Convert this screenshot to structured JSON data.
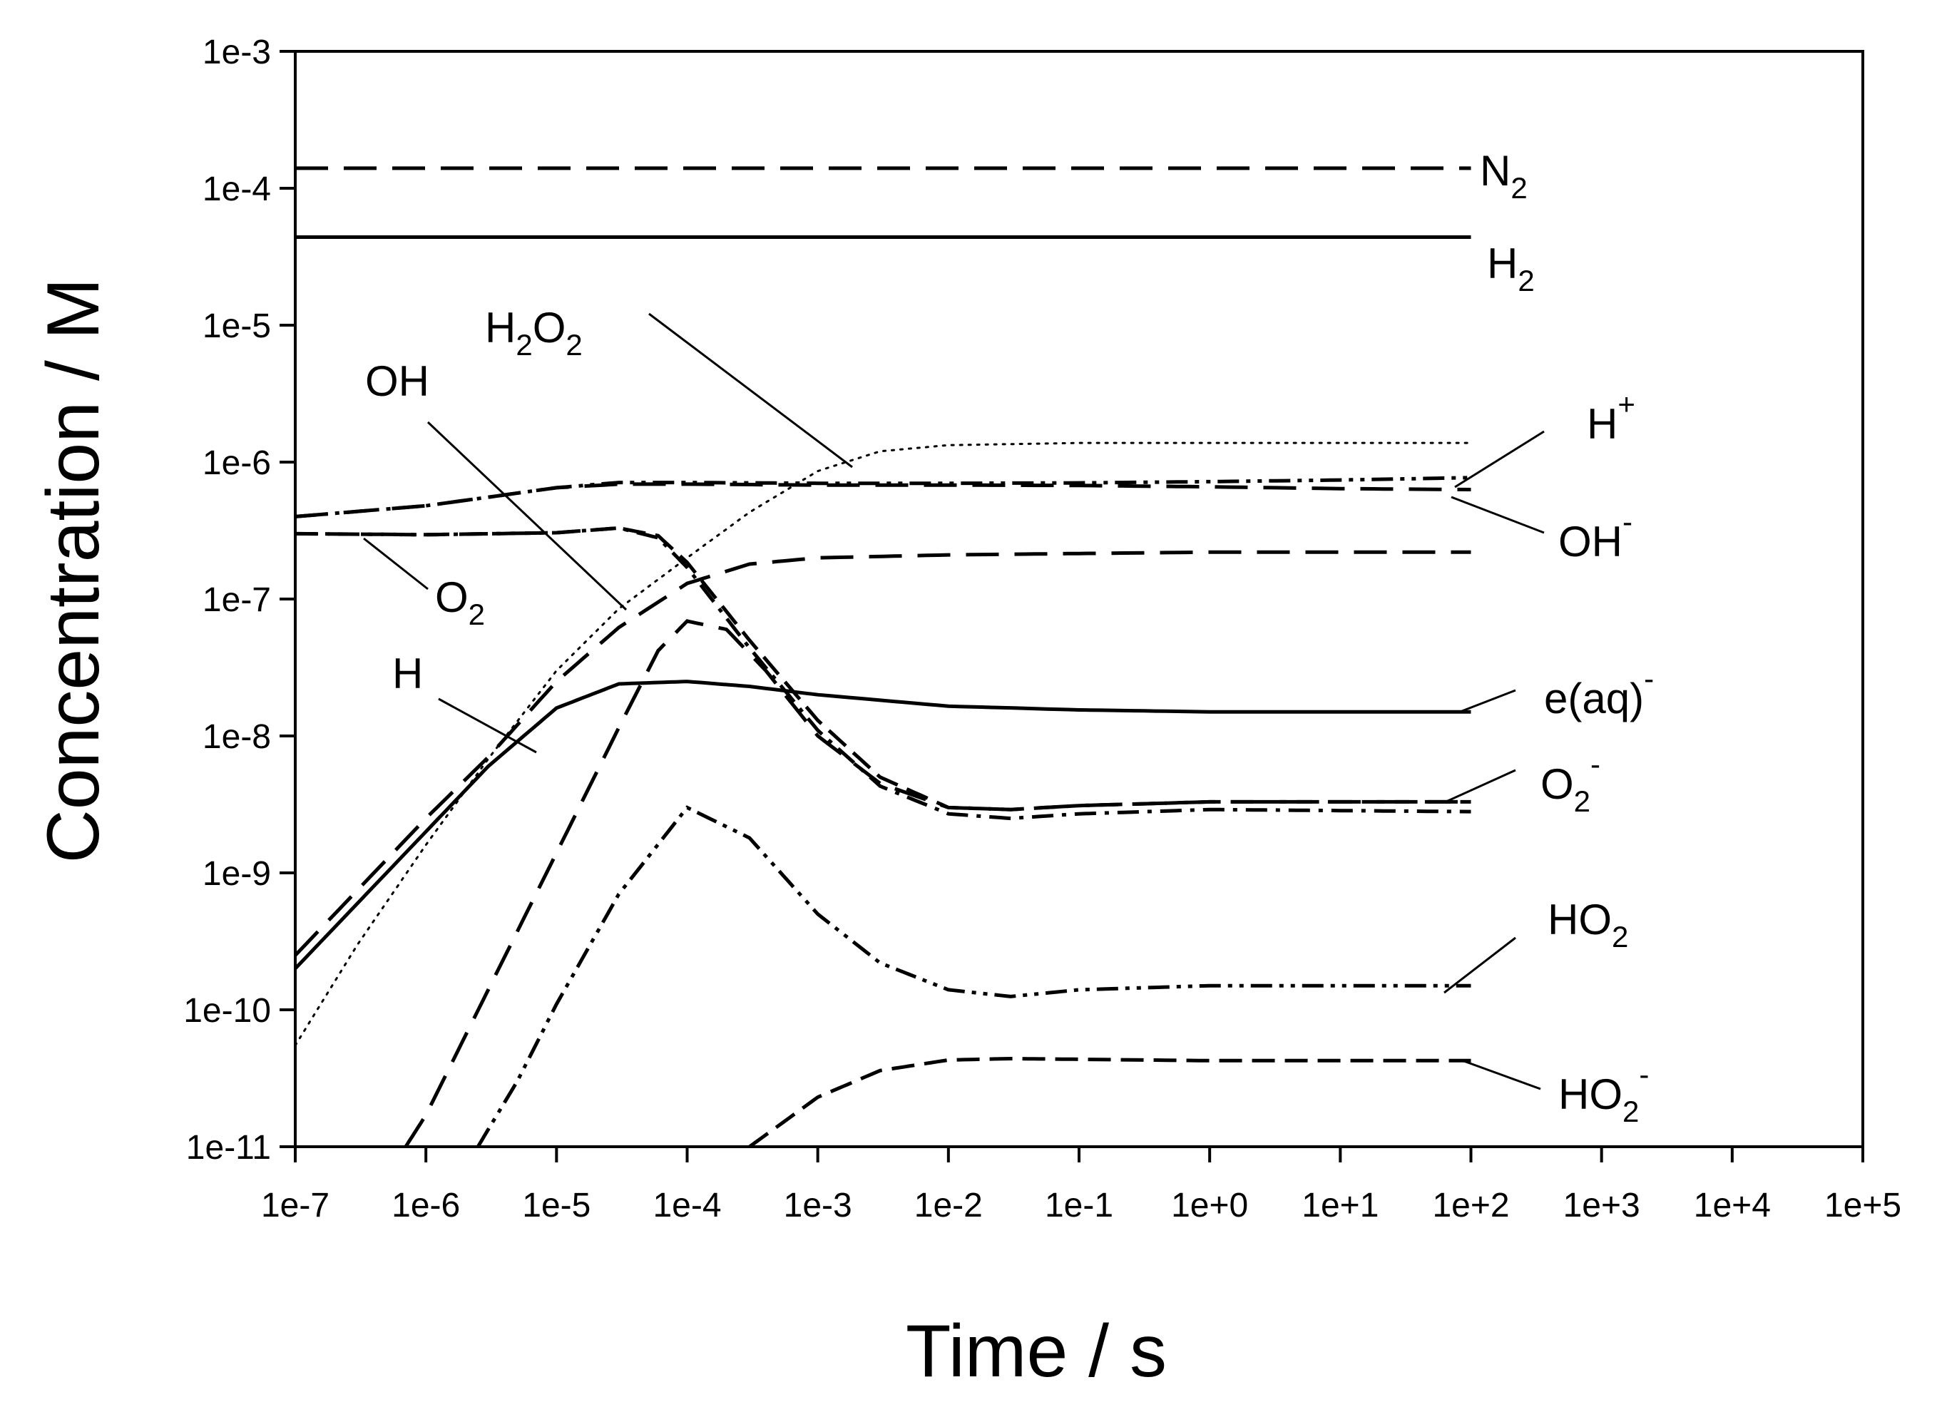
{
  "chart_data": {
    "type": "line",
    "title": "",
    "xlabel": "Time  / s",
    "ylabel": "Concentration  / M",
    "x_scale": "log",
    "y_scale": "log",
    "xlim": [
      1e-07,
      100000.0
    ],
    "ylim": [
      1e-11,
      0.001
    ],
    "x_tick_labels": [
      "1e-7",
      "1e-6",
      "1e-5",
      "1e-4",
      "1e-3",
      "1e-2",
      "1e-1",
      "1e+0",
      "1e+1",
      "1e+2",
      "1e+3",
      "1e+4",
      "1e+5"
    ],
    "y_tick_labels": [
      "1e-3",
      "1e-4",
      "1e-5",
      "1e-6",
      "1e-7",
      "1e-8",
      "1e-9",
      "1e-10",
      "1e-11"
    ],
    "grid": false,
    "legend": "none",
    "series": [
      {
        "name": "N2",
        "label_main": "N",
        "label_sub": "2",
        "label_sup": "",
        "style": "dash-long",
        "points": [
          [
            1e-07,
            0.00014
          ],
          [
            100.0,
            0.00014
          ]
        ]
      },
      {
        "name": "H2",
        "label_main": "H",
        "label_sub": "2",
        "label_sup": "",
        "style": "solid",
        "points": [
          [
            1e-07,
            4.4e-05
          ],
          [
            100.0,
            4.4e-05
          ]
        ]
      },
      {
        "name": "H2O2",
        "label_main": "H",
        "label_sub": "2",
        "label_main2": "O",
        "label_sub2": "2",
        "style": "dotted",
        "points": [
          [
            1e-07,
            5.5e-11
          ],
          [
            3e-07,
            3e-10
          ],
          [
            1e-06,
            1.6e-09
          ],
          [
            3e-06,
            6.8e-09
          ],
          [
            1e-05,
            3e-08
          ],
          [
            3e-05,
            8.5e-08
          ],
          [
            0.0001,
            2e-07
          ],
          [
            0.0003,
            4.3e-07
          ],
          [
            0.001,
            8.6e-07
          ],
          [
            0.003,
            1.2e-06
          ],
          [
            0.01,
            1.33e-06
          ],
          [
            0.1,
            1.38e-06
          ],
          [
            1,
            1.38e-06
          ],
          [
            10.0,
            1.38e-06
          ],
          [
            100.0,
            1.38e-06
          ]
        ]
      },
      {
        "name": "OH",
        "label_main": "OH",
        "label_sub": "",
        "label_sup": "",
        "style": "dash-medium",
        "points": [
          [
            1e-07,
            3e-07
          ],
          [
            1e-06,
            2.95e-07
          ],
          [
            1e-05,
            3.05e-07
          ],
          [
            3e-05,
            3.3e-07
          ],
          [
            6e-05,
            2.9e-07
          ],
          [
            0.0001,
            1.85e-07
          ],
          [
            0.0003,
            5e-08
          ],
          [
            0.001,
            1.3e-08
          ],
          [
            0.003,
            5e-09
          ],
          [
            0.01,
            3e-09
          ],
          [
            0.03,
            2.9e-09
          ],
          [
            0.1,
            3.1e-09
          ],
          [
            1,
            3.3e-09
          ],
          [
            10.0,
            3.3e-09
          ],
          [
            100.0,
            3.3e-09
          ]
        ]
      },
      {
        "name": "H+",
        "label_main": "H",
        "label_sub": "",
        "label_sup": "+",
        "style": "dash-dot-dot",
        "points": [
          [
            1e-07,
            4e-07
          ],
          [
            1e-06,
            4.8e-07
          ],
          [
            1e-05,
            6.5e-07
          ],
          [
            3e-05,
            7.1e-07
          ],
          [
            0.0001,
            7.1e-07
          ],
          [
            0.001,
            7e-07
          ],
          [
            0.01,
            7e-07
          ],
          [
            0.1,
            7.05e-07
          ],
          [
            1,
            7.2e-07
          ],
          [
            10.0,
            7.4e-07
          ],
          [
            100.0,
            7.7e-07
          ]
        ]
      },
      {
        "name": "OH-",
        "label_main": "OH",
        "label_sub": "",
        "label_sup": "-",
        "style": "dash-long",
        "points": [
          [
            1e-07,
            4e-07
          ],
          [
            1e-06,
            4.8e-07
          ],
          [
            1e-05,
            6.5e-07
          ],
          [
            3e-05,
            6.9e-07
          ],
          [
            0.0001,
            6.9e-07
          ],
          [
            0.001,
            6.8e-07
          ],
          [
            0.01,
            6.8e-07
          ],
          [
            0.1,
            6.75e-07
          ],
          [
            1,
            6.6e-07
          ],
          [
            10.0,
            6.4e-07
          ],
          [
            100.0,
            6.3e-07
          ]
        ]
      },
      {
        "name": "O2",
        "label_main": "O",
        "label_sub": "2",
        "label_sup": "",
        "style": "dash-dot",
        "points": [
          [
            1e-07,
            3e-07
          ],
          [
            1e-06,
            2.95e-07
          ],
          [
            1e-05,
            3.05e-07
          ],
          [
            3e-05,
            3.3e-07
          ],
          [
            6e-05,
            2.8e-07
          ],
          [
            0.0001,
            1.7e-07
          ],
          [
            0.0003,
            4.4e-08
          ],
          [
            0.001,
            1.1e-08
          ],
          [
            0.003,
            4.3e-09
          ],
          [
            0.01,
            2.7e-09
          ],
          [
            0.03,
            2.5e-09
          ],
          [
            0.1,
            2.7e-09
          ],
          [
            1,
            2.9e-09
          ],
          [
            10.0,
            2.85e-09
          ],
          [
            100.0,
            2.8e-09
          ]
        ]
      },
      {
        "name": "H",
        "label_main": "H",
        "label_sub": "",
        "label_sup": "",
        "style": "dash-long",
        "points": [
          [
            1e-07,
            2.5e-10
          ],
          [
            1e-06,
            2.5e-09
          ],
          [
            3e-06,
            7e-09
          ],
          [
            1e-05,
            2.5e-08
          ],
          [
            3e-05,
            6.2e-08
          ],
          [
            0.0001,
            1.3e-07
          ],
          [
            0.0003,
            1.8e-07
          ],
          [
            0.001,
            2e-07
          ],
          [
            0.01,
            2.1e-07
          ],
          [
            0.1,
            2.15e-07
          ],
          [
            1,
            2.2e-07
          ],
          [
            10.0,
            2.2e-07
          ],
          [
            100.0,
            2.2e-07
          ]
        ]
      },
      {
        "name": "e(aq)-",
        "label_main": "e(aq)",
        "label_sub": "",
        "label_sup": "-",
        "style": "solid",
        "points": [
          [
            1e-07,
            2e-10
          ],
          [
            1e-06,
            2e-09
          ],
          [
            3e-06,
            6e-09
          ],
          [
            1e-05,
            1.6e-08
          ],
          [
            3e-05,
            2.4e-08
          ],
          [
            0.0001,
            2.5e-08
          ],
          [
            0.0003,
            2.3e-08
          ],
          [
            0.001,
            2e-08
          ],
          [
            0.01,
            1.65e-08
          ],
          [
            0.1,
            1.55e-08
          ],
          [
            1,
            1.5e-08
          ],
          [
            10.0,
            1.5e-08
          ],
          [
            100.0,
            1.5e-08
          ]
        ]
      },
      {
        "name": "O2-",
        "label_main": "O",
        "label_sub": "2",
        "label_sup": "-",
        "style": "dash-long",
        "points": [
          [
            7e-07,
            1e-11
          ],
          [
            1e-06,
            1.7e-11
          ],
          [
            3e-06,
            1.4e-10
          ],
          [
            1e-05,
            1.4e-09
          ],
          [
            3e-05,
            1.15e-08
          ],
          [
            6e-05,
            4.2e-08
          ],
          [
            0.0001,
            6.9e-08
          ],
          [
            0.0002,
            6e-08
          ],
          [
            0.0004,
            3e-08
          ],
          [
            0.001,
            1e-08
          ],
          [
            0.003,
            4.5e-09
          ],
          [
            0.01,
            3e-09
          ],
          [
            0.03,
            2.9e-09
          ],
          [
            0.1,
            3.1e-09
          ],
          [
            1,
            3.3e-09
          ],
          [
            10.0,
            3.3e-09
          ],
          [
            100.0,
            3.3e-09
          ]
        ]
      },
      {
        "name": "HO2",
        "label_main": "HO",
        "label_sub": "2",
        "label_sup": "",
        "style": "dash-dot-dot",
        "points": [
          [
            2.5e-06,
            1e-11
          ],
          [
            5e-06,
            3e-11
          ],
          [
            1e-05,
            1.1e-10
          ],
          [
            3e-05,
            7e-10
          ],
          [
            0.0001,
            3e-09
          ],
          [
            0.0003,
            1.8e-09
          ],
          [
            0.001,
            5e-10
          ],
          [
            0.003,
            2.2e-10
          ],
          [
            0.01,
            1.4e-10
          ],
          [
            0.03,
            1.25e-10
          ],
          [
            0.1,
            1.4e-10
          ],
          [
            1,
            1.5e-10
          ],
          [
            10.0,
            1.5e-10
          ],
          [
            100.0,
            1.5e-10
          ]
        ]
      },
      {
        "name": "HO2-",
        "label_main": "HO",
        "label_sub": "2",
        "label_sup": "-",
        "style": "dash-medium",
        "points": [
          [
            0.0003,
            1e-11
          ],
          [
            0.001,
            2.3e-11
          ],
          [
            0.003,
            3.6e-11
          ],
          [
            0.01,
            4.3e-11
          ],
          [
            0.03,
            4.4e-11
          ],
          [
            0.1,
            4.35e-11
          ],
          [
            1,
            4.25e-11
          ],
          [
            10.0,
            4.25e-11
          ],
          [
            100.0,
            4.25e-11
          ]
        ]
      }
    ]
  }
}
